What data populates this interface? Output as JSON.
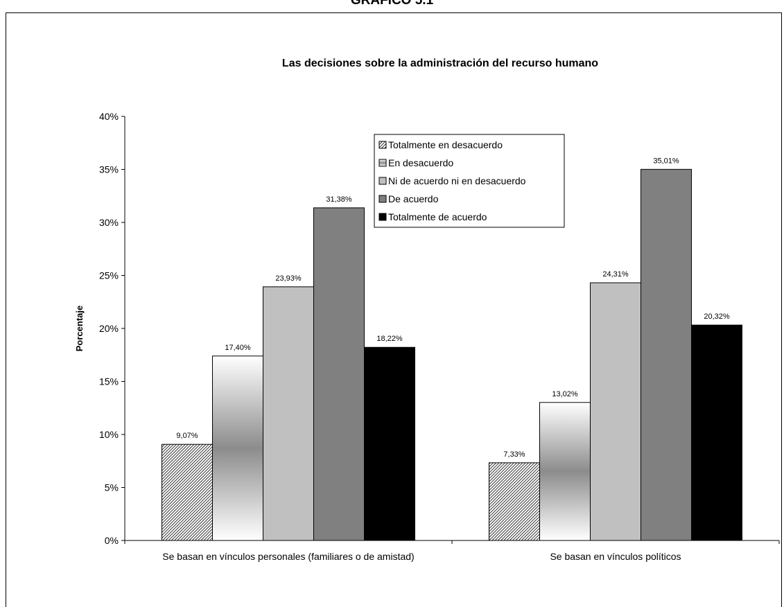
{
  "page": {
    "heading": "GRÁFICO 5.1"
  },
  "chart_data": {
    "type": "bar",
    "title": "Las decisiones sobre la administración del recurso humano",
    "xlabel": "",
    "ylabel": "Porcentaje",
    "ylim": [
      0,
      40
    ],
    "yticks": [
      "0%",
      "5%",
      "10%",
      "15%",
      "20%",
      "25%",
      "30%",
      "35%",
      "40%"
    ],
    "categories": [
      "Se basan en vínculos personales (familiares o de amistad)",
      "Se basan en vínculos políticos"
    ],
    "series": [
      {
        "name": "Totalmente en desacuerdo",
        "values": [
          9.07,
          7.33
        ],
        "labels": [
          "9,07%",
          "7,33%"
        ],
        "fill": "hatch"
      },
      {
        "name": "En desacuerdo",
        "values": [
          17.4,
          13.02
        ],
        "labels": [
          "17,40%",
          "13,02%"
        ],
        "fill": "gradient"
      },
      {
        "name": "Ni de acuerdo ni en desacuerdo",
        "values": [
          23.93,
          24.31
        ],
        "labels": [
          "23,93%",
          "24,31%"
        ],
        "fill": "#c0c0c0"
      },
      {
        "name": "De acuerdo",
        "values": [
          31.38,
          35.01
        ],
        "labels": [
          "31,38%",
          "35,01%"
        ],
        "fill": "#808080"
      },
      {
        "name": "Totalmente de acuerdo",
        "values": [
          18.22,
          20.32
        ],
        "labels": [
          "18,22%",
          "20,32%"
        ],
        "fill": "#000000"
      }
    ],
    "grid": false,
    "legend_position": "top-right"
  }
}
